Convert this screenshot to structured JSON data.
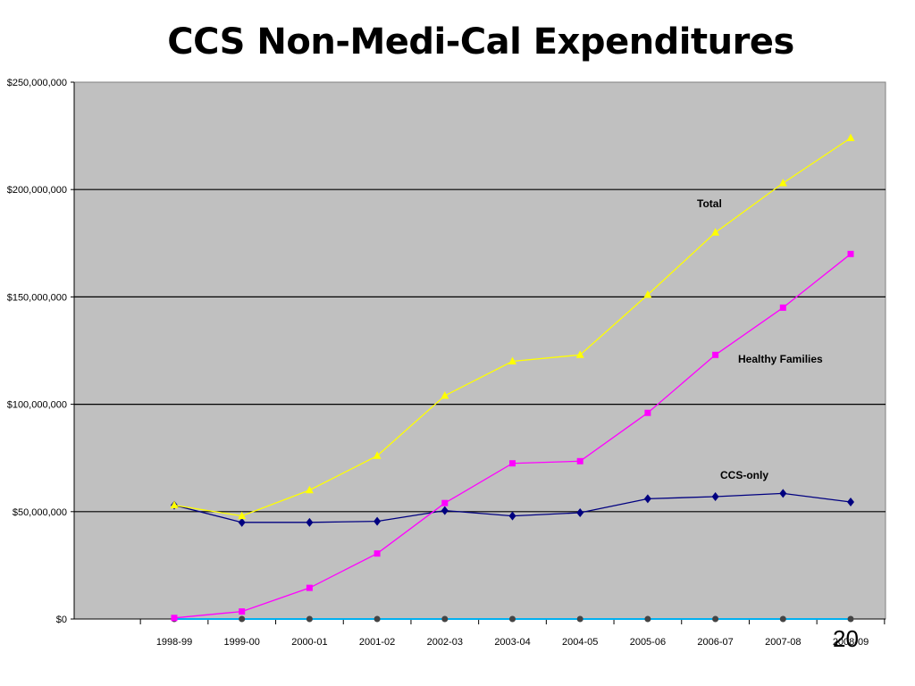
{
  "slide": {
    "title": "CCS Non-Medi-Cal Expenditures",
    "page_number": "20"
  },
  "chart_data": {
    "type": "line",
    "title": "",
    "xlabel": "",
    "ylabel": "",
    "categories": [
      "1998-99",
      "1999-00",
      "2000-01",
      "2001-02",
      "2002-03",
      "2003-04",
      "2004-05",
      "2005-06",
      "2006-07",
      "2007-08",
      "2008-09"
    ],
    "y_ticks": [
      "$0",
      "$50,000,000",
      "$100,000,000",
      "$150,000,000",
      "$200,000,000",
      "$250,000,000"
    ],
    "ylim": [
      0,
      250000000
    ],
    "grid": true,
    "plot_background": "#c0c0c0",
    "series": [
      {
        "name": "Total",
        "color": "#ffff00",
        "marker": "triangle",
        "values": [
          53000000,
          48000000,
          60000000,
          76000000,
          104000000,
          120000000,
          123000000,
          151000000,
          180000000,
          203000000,
          224000000
        ]
      },
      {
        "name": "Healthy Families",
        "color": "#ff00ff",
        "marker": "square",
        "values": [
          500000,
          3500000,
          14500000,
          30500000,
          54000000,
          72500000,
          73500000,
          96000000,
          123000000,
          145000000,
          170000000
        ]
      },
      {
        "name": "CCS-only",
        "color": "#000080",
        "marker": "diamond",
        "values": [
          53000000,
          45000000,
          45000000,
          45500000,
          50500000,
          48000000,
          49500000,
          56000000,
          57000000,
          58500000,
          54500000
        ]
      },
      {
        "name": "",
        "color": "#00b0f0",
        "marker": "circle",
        "values": [
          0,
          0,
          0,
          0,
          0,
          0,
          0,
          0,
          0,
          0,
          0
        ]
      }
    ]
  }
}
